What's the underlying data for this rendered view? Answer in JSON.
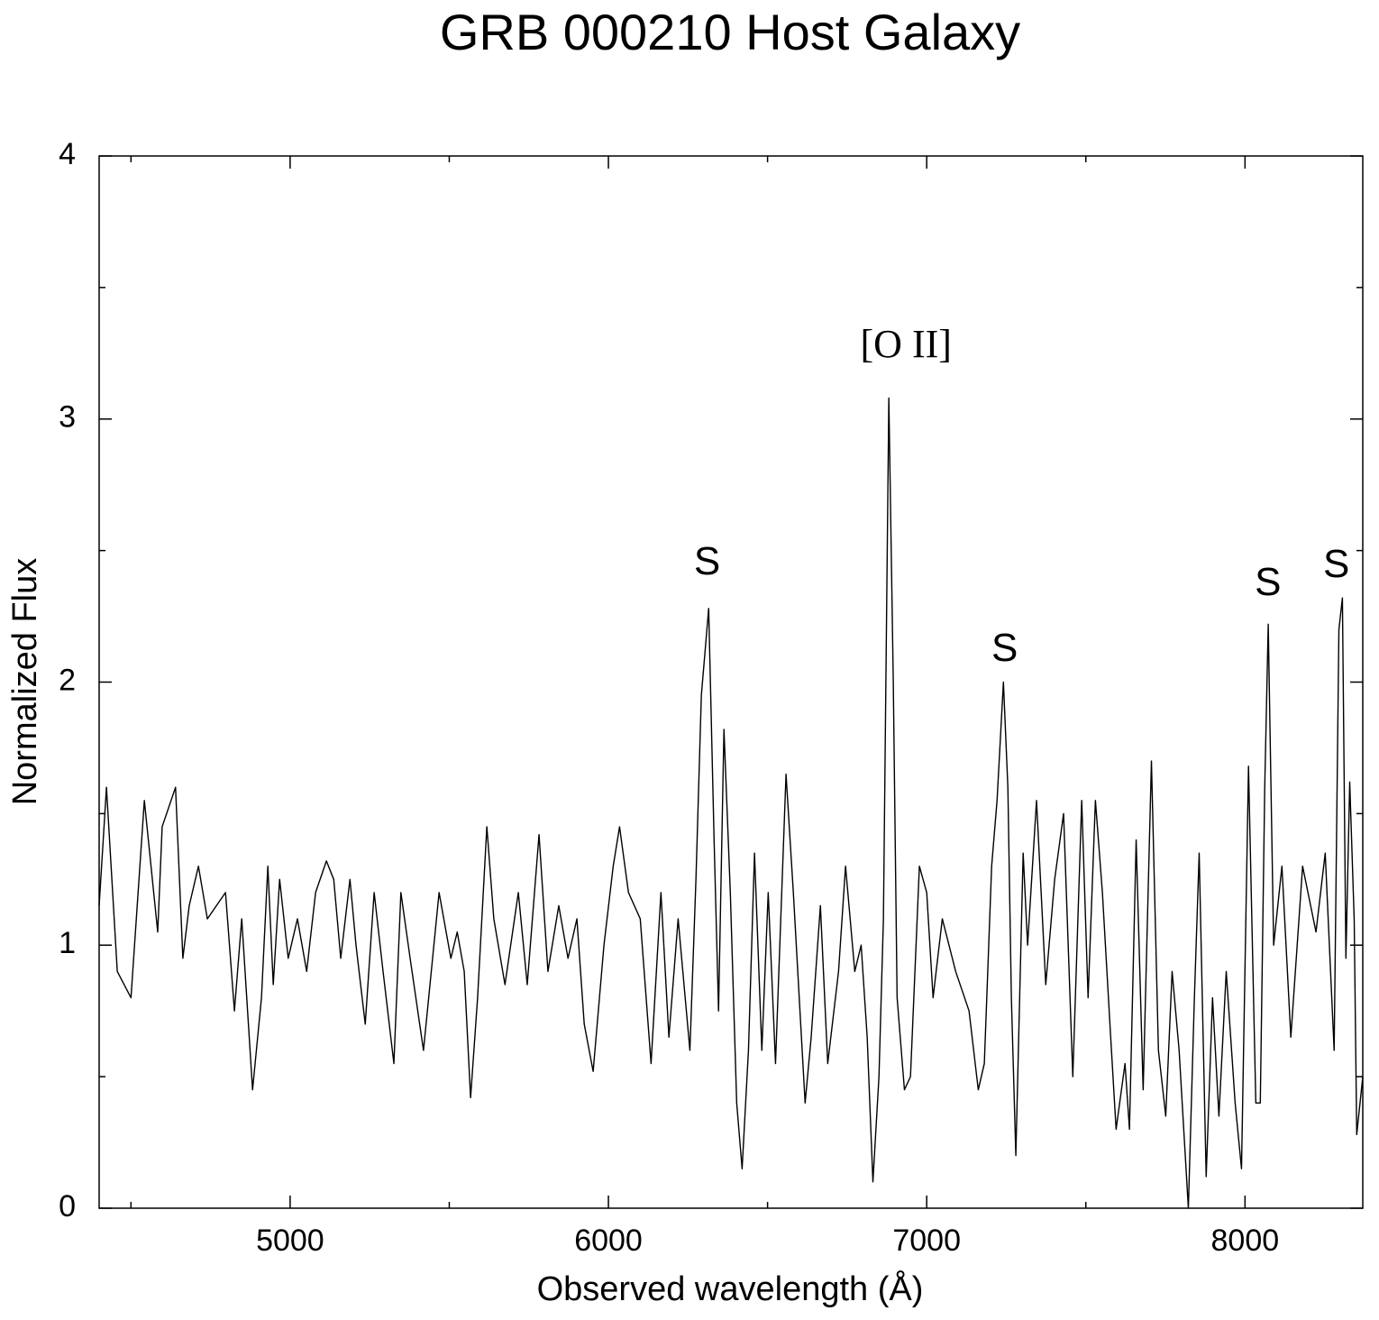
{
  "chart_data": {
    "type": "line",
    "title": "GRB 000210 Host Galaxy",
    "xlabel": "Observed wavelength (Å)",
    "ylabel": "Normalized Flux",
    "color": "#000000",
    "xlim": [
      4400,
      8370
    ],
    "ylim": [
      0,
      4
    ],
    "xticks": [
      5000,
      6000,
      7000,
      8000
    ],
    "yticks": [
      0,
      1,
      2,
      3,
      4
    ],
    "xminor_ticks": [
      4500,
      5500,
      6500,
      7500
    ],
    "yminor_ticks": [
      0.5,
      1.5,
      2.5,
      3.5
    ],
    "annotations": [
      {
        "text": "[O II]",
        "x": 6935,
        "y": 3.27,
        "font": "serif"
      },
      {
        "text": "S",
        "x": 6310,
        "y": 2.45,
        "font": "sans-serif"
      },
      {
        "text": "S",
        "x": 7245,
        "y": 2.12,
        "font": "sans-serif"
      },
      {
        "text": "S",
        "x": 8072,
        "y": 2.37,
        "font": "sans-serif"
      },
      {
        "text": "S",
        "x": 8287,
        "y": 2.44,
        "font": "sans-serif"
      }
    ],
    "x": [
      4400,
      4423,
      4457,
      4500,
      4542,
      4584,
      4598,
      4640,
      4663,
      4683,
      4712,
      4740,
      4797,
      4825,
      4848,
      4882,
      4910,
      4930,
      4947,
      4967,
      4994,
      5023,
      5052,
      5080,
      5114,
      5137,
      5159,
      5188,
      5207,
      5236,
      5264,
      5292,
      5326,
      5348,
      5377,
      5419,
      5468,
      5505,
      5525,
      5547,
      5567,
      5589,
      5618,
      5640,
      5675,
      5717,
      5745,
      5782,
      5810,
      5844,
      5873,
      5901,
      5924,
      5952,
      5986,
      6015,
      6035,
      6063,
      6100,
      6134,
      6165,
      6190,
      6219,
      6256,
      6275,
      6292,
      6315,
      6332,
      6346,
      6363,
      6383,
      6403,
      6420,
      6440,
      6459,
      6482,
      6502,
      6525,
      6558,
      6581,
      6618,
      6637,
      6666,
      6689,
      6723,
      6745,
      6774,
      6794,
      6813,
      6831,
      6850,
      6864,
      6881,
      6895,
      6907,
      6930,
      6949,
      6977,
      7000,
      7020,
      7049,
      7091,
      7133,
      7162,
      7181,
      7204,
      7221,
      7241,
      7255,
      7266,
      7280,
      7303,
      7317,
      7345,
      7374,
      7402,
      7430,
      7459,
      7487,
      7507,
      7530,
      7552,
      7578,
      7595,
      7623,
      7637,
      7658,
      7680,
      7706,
      7728,
      7751,
      7771,
      7793,
      7822,
      7841,
      7856,
      7878,
      7898,
      7918,
      7941,
      7969,
      7989,
      8011,
      8034,
      8048,
      8062,
      8073,
      8090,
      8116,
      8144,
      8181,
      8223,
      8252,
      8280,
      8295,
      8306,
      8317,
      8329,
      8343,
      8351,
      8370
    ],
    "values": [
      1.15,
      1.6,
      0.9,
      0.8,
      1.55,
      1.05,
      1.45,
      1.6,
      0.95,
      1.15,
      1.3,
      1.1,
      1.2,
      0.75,
      1.1,
      0.45,
      0.8,
      1.3,
      0.85,
      1.25,
      0.95,
      1.1,
      0.9,
      1.2,
      1.32,
      1.25,
      0.95,
      1.25,
      1.0,
      0.7,
      1.2,
      0.9,
      0.55,
      1.2,
      0.95,
      0.6,
      1.2,
      0.95,
      1.05,
      0.9,
      0.42,
      0.8,
      1.45,
      1.1,
      0.85,
      1.2,
      0.85,
      1.42,
      0.9,
      1.15,
      0.95,
      1.1,
      0.7,
      0.52,
      1.0,
      1.3,
      1.45,
      1.2,
      1.1,
      0.55,
      1.2,
      0.65,
      1.1,
      0.6,
      1.25,
      1.95,
      2.28,
      1.4,
      0.75,
      1.82,
      1.2,
      0.4,
      0.15,
      0.6,
      1.35,
      0.6,
      1.2,
      0.55,
      1.65,
      1.2,
      0.4,
      0.65,
      1.15,
      0.55,
      0.9,
      1.3,
      0.9,
      1.0,
      0.65,
      0.1,
      0.5,
      1.1,
      3.08,
      2.0,
      0.8,
      0.45,
      0.5,
      1.3,
      1.2,
      0.8,
      1.1,
      0.9,
      0.75,
      0.45,
      0.55,
      1.3,
      1.55,
      2.0,
      1.6,
      0.8,
      0.2,
      1.35,
      1.0,
      1.55,
      0.85,
      1.25,
      1.5,
      0.5,
      1.55,
      0.8,
      1.55,
      1.2,
      0.65,
      0.3,
      0.55,
      0.3,
      1.4,
      0.45,
      1.7,
      0.6,
      0.35,
      0.9,
      0.6,
      0.0,
      0.8,
      1.35,
      0.12,
      0.8,
      0.35,
      0.9,
      0.4,
      0.15,
      1.68,
      0.4,
      0.4,
      1.6,
      2.22,
      1.0,
      1.3,
      0.65,
      1.3,
      1.05,
      1.35,
      0.6,
      2.2,
      2.32,
      0.95,
      1.62,
      1.1,
      0.28,
      0.5
    ]
  }
}
